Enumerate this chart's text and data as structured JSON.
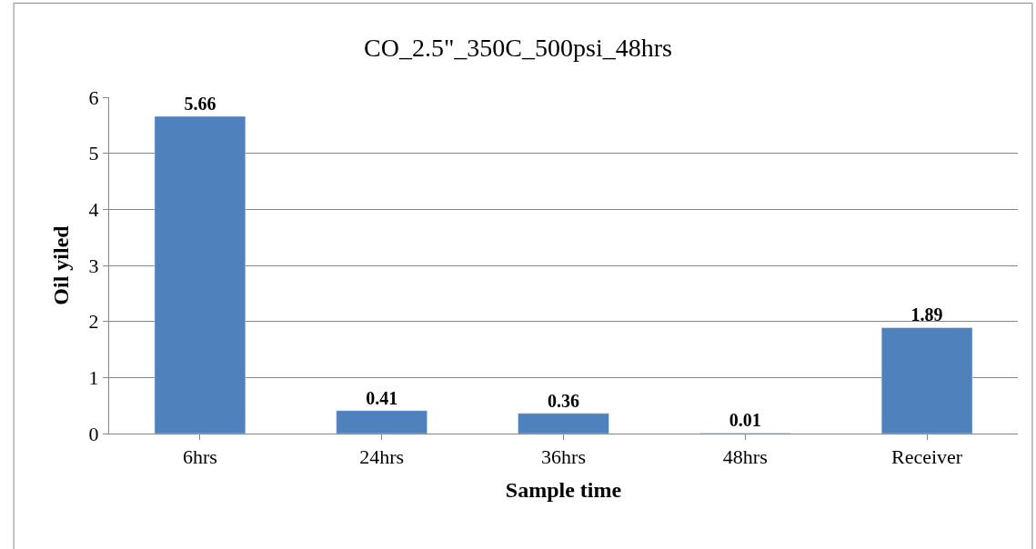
{
  "chart_data": {
    "type": "bar",
    "title": "CO_2.5\"_350C_500psi_48hrs",
    "xlabel": "Sample time",
    "ylabel": "Oil yiled",
    "categories": [
      "6hrs",
      "24hrs",
      "36hrs",
      "48hrs",
      "Receiver"
    ],
    "values": [
      5.66,
      0.41,
      0.36,
      0.01,
      1.89
    ],
    "color": "#4f81bd",
    "ylim": [
      0,
      6
    ],
    "yticks": [
      0,
      1,
      2,
      3,
      4,
      5,
      6
    ],
    "grid": "y",
    "data_labels": true,
    "legend": false
  }
}
